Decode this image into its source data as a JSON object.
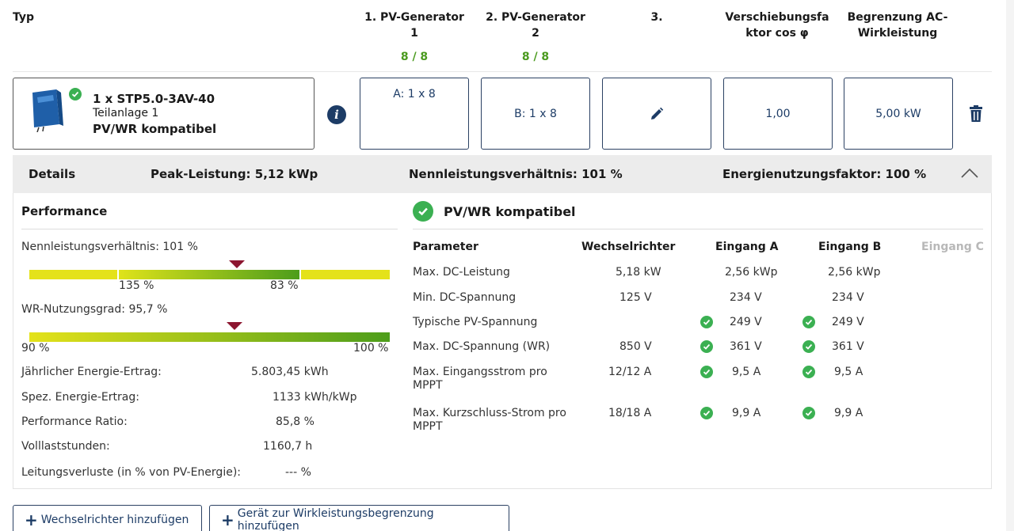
{
  "header": {
    "typ": "Typ",
    "pv1_line1": "1. PV-Generator",
    "pv1_line2": "1",
    "pv2_line1": "2. PV-Generator",
    "pv2_line2": "2",
    "third": "3.",
    "cos_line1": "Verschiebungsfa",
    "cos_line2": "ktor cos φ",
    "ac_line1": "Begrenzung AC-",
    "ac_line2": "Wirkleistung",
    "pv1_count": "8 / 8",
    "pv2_count": "8 / 8"
  },
  "inverter": {
    "name": "1 x STP5.0-3AV-40",
    "subsystem": "Teilanlage 1",
    "compat": "PV/WR kompatibel"
  },
  "config": {
    "gen_a": "A: 1 x 8",
    "gen_b": "B: 1 x 8",
    "cos_phi": "1,00",
    "ac_limit": "5,00 kW"
  },
  "details": {
    "label": "Details",
    "peak": "Peak-Leistung: 5,12 kWp",
    "ratio": "Nennleistungsverhältnis: 101 %",
    "energy_factor": "Energienutzungsfaktor: 100 %"
  },
  "performance": {
    "title": "Performance",
    "ratio_label": "Nennleistungsverhältnis: 101 %",
    "ratio_bar_left": "135 %",
    "ratio_bar_right": "83 %",
    "ratio_value_pct": 101,
    "usage_label": "WR-Nutzungsgrad: 95,7 %",
    "usage_bar_left": "90 %",
    "usage_bar_right": "100 %",
    "usage_value_pct": 95.7,
    "rows": [
      {
        "label": "Jährlicher Energie-Ertrag:",
        "value": "5.803,45 kWh"
      },
      {
        "label": "Spez. Energie-Ertrag:",
        "value": "1133 kWh/kWp"
      },
      {
        "label": "Performance Ratio:",
        "value": "85,8 %"
      },
      {
        "label": "Volllaststunden:",
        "value": "1160,7 h"
      },
      {
        "label": "Leitungsverluste (in % von PV-Energie):",
        "value": "--- %"
      }
    ]
  },
  "compat": {
    "title": "PV/WR kompatibel",
    "col_param": "Parameter",
    "col_wr": "Wechselrichter",
    "col_a": "Eingang A",
    "col_b": "Eingang B",
    "col_c": "Eingang C",
    "rows": [
      {
        "param": "Max. DC-Leistung",
        "param2": "",
        "wr": "5,18 kW",
        "a": "2,56 kWp",
        "b": "2,56 kWp"
      },
      {
        "param": "Min. DC-Spannung",
        "param2": "",
        "wr": "125 V",
        "a": "234 V",
        "b": "234 V"
      },
      {
        "param": "Typische PV-Spannung",
        "param2": "",
        "wr": "",
        "a": "249 V",
        "b": "249 V"
      },
      {
        "param": "Max. DC-Spannung (WR)",
        "param2": "",
        "wr": "850 V",
        "a": "361 V",
        "b": "361 V"
      },
      {
        "param": "Max. Eingangsstrom pro",
        "param2": "MPPT",
        "wr": "12/12 A",
        "a": "9,5 A",
        "b": "9,5 A"
      },
      {
        "param": "Max. Kurzschluss-Strom pro",
        "param2": "MPPT",
        "wr": "18/18 A",
        "a": "9,9 A",
        "b": "9,9 A"
      }
    ]
  },
  "buttons": {
    "add_inverter": "Wechselrichter hinzufügen",
    "add_device": "Gerät zur Wirkleistungsbegrenzung hinzufügen"
  }
}
